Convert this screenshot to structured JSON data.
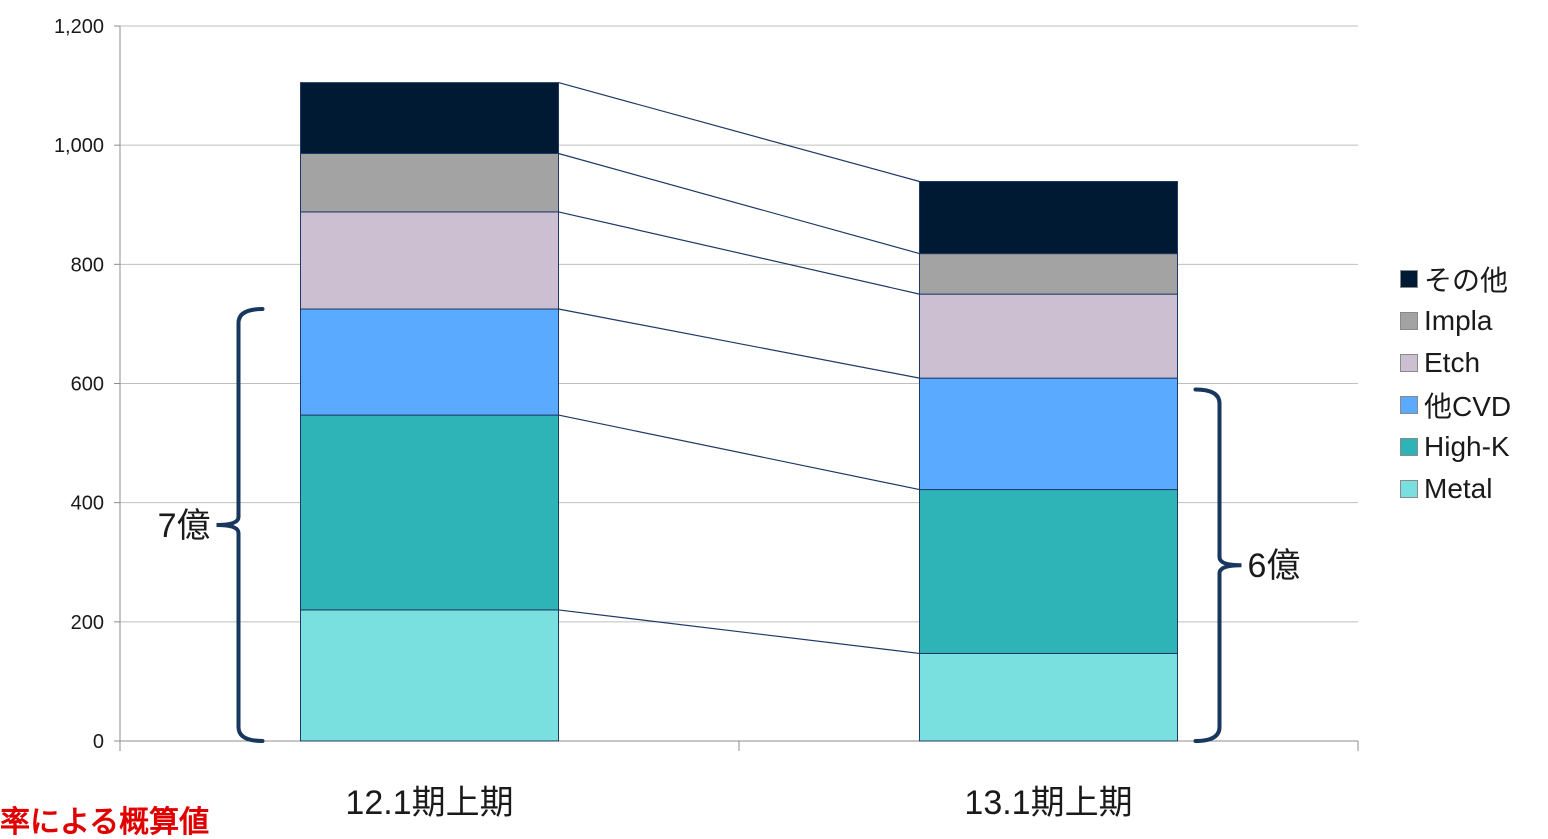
{
  "chart_data": {
    "type": "bar",
    "stacked": true,
    "categories": [
      "12.1期上期",
      "13.1期上期"
    ],
    "series": [
      {
        "name": "Metal",
        "values": [
          220,
          147
        ],
        "color": "#7adfdf"
      },
      {
        "name": "High-K",
        "values": [
          327,
          275
        ],
        "color": "#2eb3b6"
      },
      {
        "name": "他CVD",
        "values": [
          178,
          187
        ],
        "color": "#5aabff"
      },
      {
        "name": "Etch",
        "values": [
          163,
          141
        ],
        "color": "#ccbfd1"
      },
      {
        "name": "Impla",
        "values": [
          98,
          68
        ],
        "color": "#a3a3a3"
      },
      {
        "name": "その他",
        "values": [
          119,
          121
        ],
        "color": "#001a33"
      }
    ],
    "ylim": [
      0,
      1200
    ],
    "yticks": [
      0,
      200,
      400,
      600,
      800,
      1000,
      1200
    ],
    "ytick_labels": [
      "0",
      "200",
      "400",
      "600",
      "800",
      "1,000",
      "1,200"
    ],
    "grid": true,
    "legend_position": "right",
    "legend_order": [
      "その他",
      "Impla",
      "Etch",
      "他CVD",
      "High-K",
      "Metal"
    ],
    "annotations": [
      {
        "label": "7億",
        "category": "12.1期上期",
        "range": [
          0,
          725
        ],
        "side": "left"
      },
      {
        "label": "6億",
        "category": "13.1期上期",
        "range": [
          0,
          590
        ],
        "side": "right"
      }
    ],
    "footnote": "率による概算値"
  },
  "colors": {
    "gridline": "#bfbfbf",
    "axis": "#8c8c8c",
    "connector": "#1f3864",
    "bracket": "#17375e",
    "bar_border": "#1f3864",
    "footnote": "#e00000"
  }
}
